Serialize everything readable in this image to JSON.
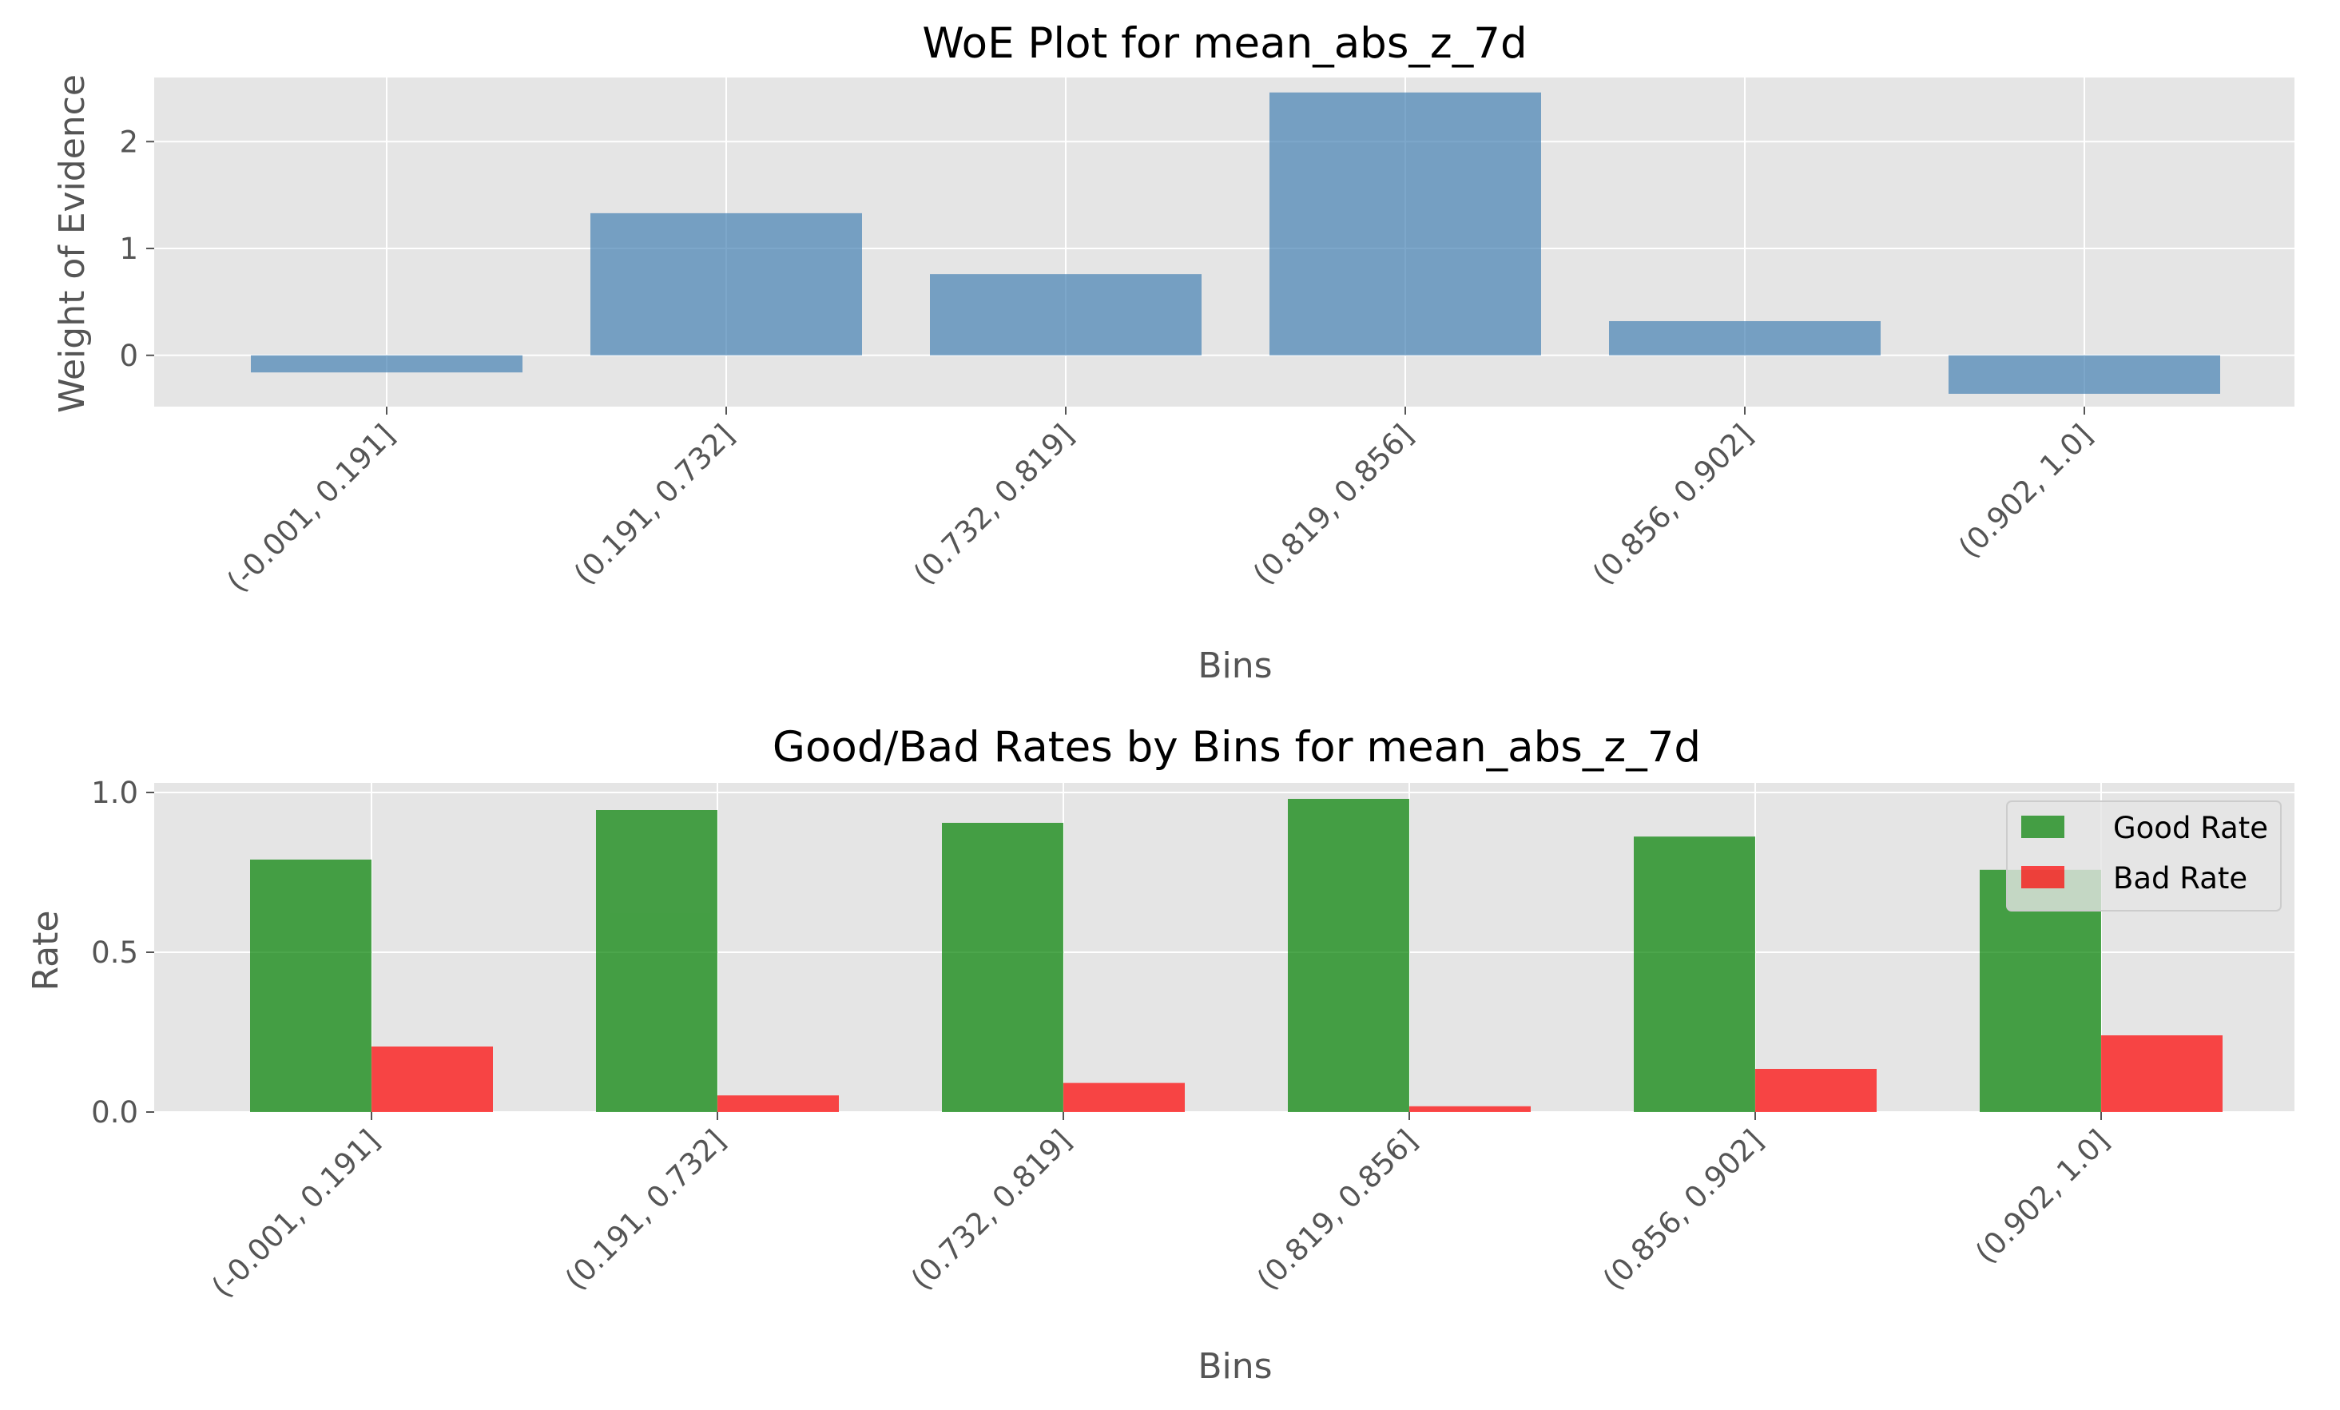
{
  "chart_data": [
    {
      "type": "bar",
      "title": "WoE Plot for mean_abs_z_7d",
      "xlabel": "Bins",
      "ylabel": "Weight of Evidence",
      "categories": [
        "(-0.001, 0.191]",
        "(0.191, 0.732]",
        "(0.732, 0.819]",
        "(0.819, 0.856]",
        "(0.856, 0.902]",
        "(0.902, 1.0]"
      ],
      "series": [
        {
          "values": [
            -0.16,
            1.33,
            0.76,
            2.46,
            0.32,
            -0.36
          ],
          "color": "#4682b4"
        }
      ],
      "ylim": [
        -0.48,
        2.6
      ],
      "yticks": [
        0,
        1,
        2
      ],
      "grid": true,
      "style": "ggplot"
    },
    {
      "type": "bar",
      "title": "Good/Bad Rates by Bins for mean_abs_z_7d",
      "xlabel": "Bins",
      "ylabel": "Rate",
      "categories": [
        "(-0.001, 0.191]",
        "(0.191, 0.732]",
        "(0.732, 0.819]",
        "(0.819, 0.856]",
        "(0.856, 0.902]",
        "(0.902, 1.0]"
      ],
      "series": [
        {
          "name": "Good Rate",
          "values": [
            0.79,
            0.945,
            0.905,
            0.98,
            0.862,
            0.758
          ],
          "color": "#008000"
        },
        {
          "name": "Bad Rate",
          "values": [
            0.205,
            0.052,
            0.091,
            0.018,
            0.135,
            0.24
          ],
          "color": "#ff0000"
        }
      ],
      "ylim": [
        0,
        1.03
      ],
      "yticks": [
        "0.0",
        "0.5",
        "1.0"
      ],
      "legend": "upper right",
      "grid": true,
      "style": "ggplot"
    }
  ]
}
